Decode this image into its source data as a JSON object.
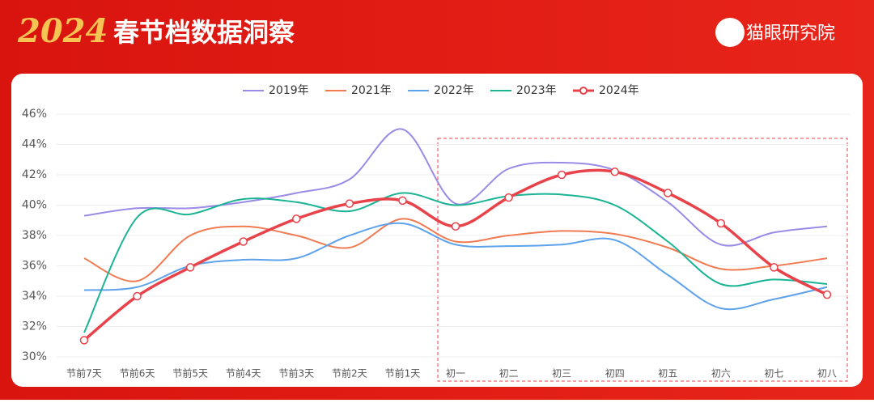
{
  "header": {
    "year": "2024",
    "title": "春节档数据洞察",
    "brand": "猫眼研究院"
  },
  "chart_data": {
    "type": "line",
    "categories": [
      "节前7天",
      "节前6天",
      "节前5天",
      "节前4天",
      "节前3天",
      "节前2天",
      "节前1天",
      "初一",
      "初二",
      "初三",
      "初四",
      "初五",
      "初六",
      "初七",
      "初八"
    ],
    "series": [
      {
        "name": "2019年",
        "color": "#9b8ae6",
        "values": [
          39.3,
          39.8,
          39.8,
          40.2,
          40.8,
          41.7,
          45.0,
          40.1,
          42.4,
          42.8,
          42.3,
          40.2,
          37.4,
          38.2,
          38.6
        ]
      },
      {
        "name": "2021年",
        "color": "#f07b52",
        "values": [
          36.5,
          35.0,
          38.0,
          38.6,
          38.0,
          37.2,
          39.1,
          37.6,
          38.0,
          38.3,
          38.1,
          37.2,
          35.8,
          36.0,
          36.5
        ]
      },
      {
        "name": "2022年",
        "color": "#5da2ea",
        "values": [
          34.4,
          34.6,
          36.0,
          36.4,
          36.5,
          38.0,
          38.8,
          37.4,
          37.3,
          37.4,
          37.7,
          35.4,
          33.2,
          33.8,
          34.6
        ]
      },
      {
        "name": "2023年",
        "color": "#1ab394",
        "values": [
          31.6,
          39.2,
          39.4,
          40.4,
          40.2,
          39.6,
          40.8,
          40.0,
          40.6,
          40.7,
          40.0,
          37.6,
          34.8,
          35.1,
          34.8
        ]
      },
      {
        "name": "2024年",
        "color": "#e8424a",
        "values": [
          31.1,
          34.0,
          35.9,
          37.6,
          39.1,
          40.1,
          40.3,
          38.6,
          40.5,
          42.0,
          42.2,
          40.8,
          38.8,
          35.9,
          34.1
        ]
      }
    ],
    "ylim": [
      30,
      46
    ],
    "yticks": [
      {
        "value": 30,
        "label": "30%"
      },
      {
        "value": 32,
        "label": "32%"
      },
      {
        "value": 34,
        "label": "34%"
      },
      {
        "value": 36,
        "label": "36%"
      },
      {
        "value": 38,
        "label": "38%"
      },
      {
        "value": 40,
        "label": "40%"
      },
      {
        "value": 42,
        "label": "42%"
      },
      {
        "value": 44,
        "label": "44%"
      },
      {
        "value": 46,
        "label": "46%"
      }
    ]
  }
}
